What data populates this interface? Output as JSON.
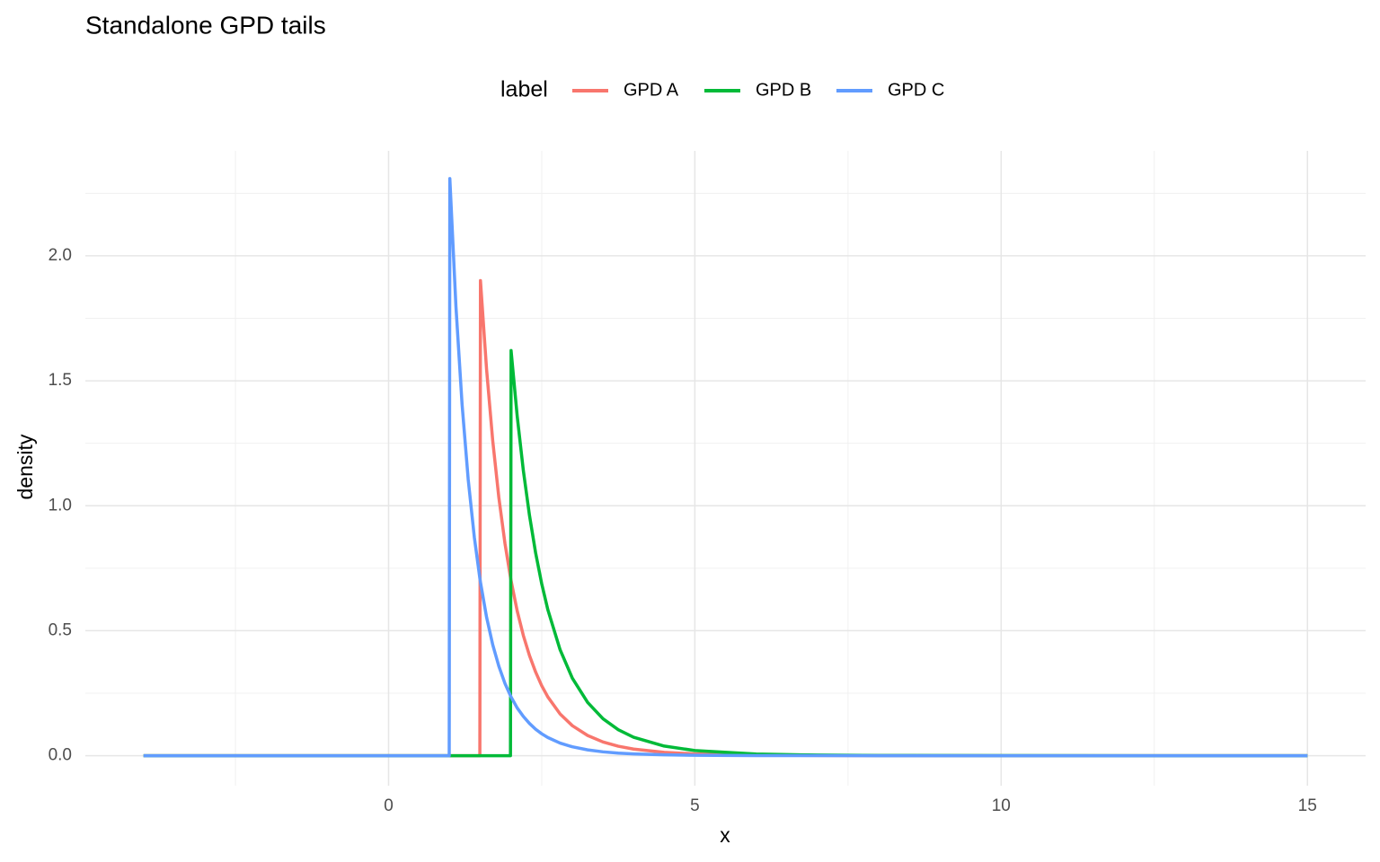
{
  "chart_data": {
    "type": "line",
    "title": "Standalone GPD tails",
    "x_label": "x",
    "y_label": "density",
    "legend_title": "label",
    "legend_position": "top",
    "grid": true,
    "x": [
      -4,
      0.99,
      1,
      1.1,
      1.2,
      1.3,
      1.4,
      1.49,
      1.5,
      1.6,
      1.7,
      1.8,
      1.9,
      1.99,
      2.0,
      2.1,
      2.2,
      2.3,
      2.4,
      2.5,
      2.6,
      2.8,
      3.0,
      3.25,
      3.5,
      3.75,
      4.0,
      4.5,
      5,
      6,
      7,
      8,
      10,
      15
    ],
    "series": [
      {
        "name": "GPD A",
        "color": "#F8766D",
        "values": [
          0,
          0,
          0,
          0,
          0,
          0,
          0,
          0,
          1.901,
          1.545,
          1.261,
          1.033,
          0.849,
          0.714,
          0.7,
          0.579,
          0.481,
          0.401,
          0.335,
          0.28,
          0.235,
          0.167,
          0.12,
          0.0808,
          0.0549,
          0.0378,
          0.0264,
          0.0133,
          0.007,
          0.0021,
          0.0007,
          0.0003,
          0,
          0
        ]
      },
      {
        "name": "GPD B",
        "color": "#00BA38",
        "values": [
          0,
          0,
          0,
          0,
          0,
          0,
          0,
          0,
          0,
          0,
          0,
          0,
          0,
          0,
          1.621,
          1.358,
          1.141,
          0.962,
          0.812,
          0.688,
          0.584,
          0.424,
          0.31,
          0.213,
          0.148,
          0.104,
          0.0738,
          0.0384,
          0.0207,
          0.0066,
          0.0024,
          0.0009,
          0.0002,
          0
        ]
      },
      {
        "name": "GPD C",
        "color": "#619CFF",
        "values": [
          0,
          0,
          2.309,
          1.796,
          1.405,
          1.105,
          0.874,
          0.71,
          0.694,
          0.554,
          0.444,
          0.358,
          0.289,
          0.24,
          0.235,
          0.191,
          0.157,
          0.129,
          0.106,
          0.0877,
          0.0727,
          0.0505,
          0.0355,
          0.0232,
          0.0154,
          0.0103,
          0.0071,
          0.0034,
          0.0017,
          0.0005,
          0.0002,
          0.0001,
          0,
          0
        ]
      }
    ],
    "xlim": [
      -4.95,
      15.95
    ],
    "xticks": [
      0,
      5,
      10,
      15
    ],
    "x_minor_ticks": [
      -2.5,
      2.5,
      7.5,
      12.5
    ],
    "ylim": [
      -0.12,
      2.42
    ],
    "yticks": [
      {
        "value": 0,
        "label": "0.0"
      },
      {
        "value": 0.5,
        "label": "0.5"
      },
      {
        "value": 1,
        "label": "1.0"
      },
      {
        "value": 1.5,
        "label": "1.5"
      },
      {
        "value": 2,
        "label": "2.0"
      }
    ],
    "y_minor_ticks": [
      0.25,
      0.75,
      1.25,
      1.75,
      2.25
    ]
  }
}
